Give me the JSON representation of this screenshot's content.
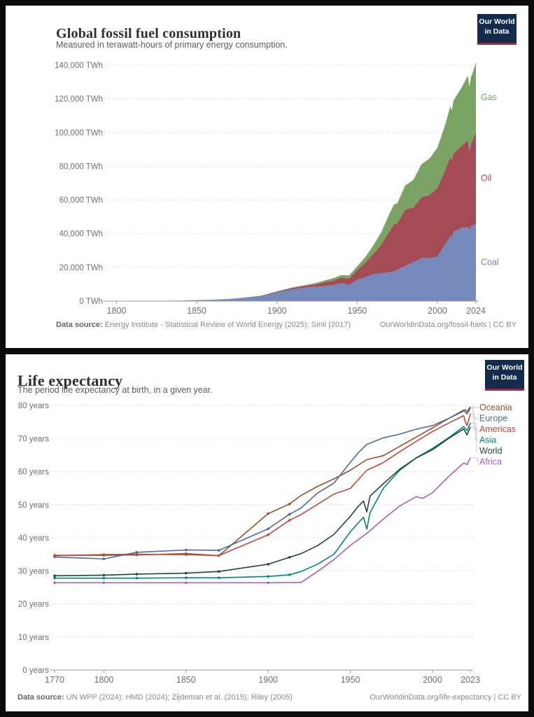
{
  "brand": {
    "logo_line1": "Our World",
    "logo_line2": "in Data",
    "logo_bg": "#132c4d",
    "logo_stripe": "#a52639"
  },
  "charts": [
    {
      "title": "Global fossil fuel consumption",
      "subtitle": "Measured in terawatt-hours of primary energy consumption.",
      "footer": {
        "source_label": "Data source:",
        "source_text": " Energy Institute - Statistical Review of World Energy (2025); Smil (2017)",
        "right_text": "OurWorldinData.org/fossil-fuels | CC BY"
      },
      "chart_data": {
        "type": "area",
        "stacked": true,
        "unit": "TWh",
        "grid": "horizontal-dashed",
        "legend_position": "right-inline",
        "xlim": [
          1795,
          2024
        ],
        "ylim": [
          0,
          140000
        ],
        "xticks": [
          1800,
          1850,
          1900,
          1950,
          2000,
          2024
        ],
        "yticks": [
          0,
          20000,
          40000,
          60000,
          80000,
          100000,
          120000,
          140000
        ],
        "x": [
          1800,
          1810,
          1820,
          1830,
          1840,
          1850,
          1860,
          1870,
          1880,
          1890,
          1900,
          1910,
          1920,
          1925,
          1930,
          1935,
          1940,
          1945,
          1950,
          1955,
          1960,
          1965,
          1970,
          1973,
          1975,
          1980,
          1985,
          1990,
          1995,
          2000,
          2005,
          2008,
          2009,
          2010,
          2015,
          2019,
          2020,
          2021,
          2022,
          2023,
          2024
        ],
        "series": [
          {
            "name": "Coal",
            "color": "#7589ba",
            "values": [
              97,
              120,
              150,
              210,
              300,
              570,
              800,
              1200,
              1900,
              2800,
              5100,
              7000,
              8300,
              8500,
              9000,
              9500,
              10600,
              9500,
              12600,
              14200,
              16000,
              16500,
              17200,
              17700,
              18500,
              20900,
              23000,
              25500,
              25500,
              26500,
              34000,
              38500,
              38000,
              41000,
              43500,
              43800,
              42500,
              44500,
              45000,
              45500,
              46000
            ]
          },
          {
            "name": "Oil",
            "color": "#a34c55",
            "values": [
              0,
              0,
              0,
              0,
              0,
              0,
              10,
              60,
              180,
              300,
              450,
              800,
              1100,
              1600,
              2200,
              2700,
              3300,
              3900,
              5800,
              8500,
              12000,
              17000,
              24000,
              28000,
              27500,
              33500,
              32500,
              36000,
              37500,
              40500,
              44000,
              47000,
              45500,
              46500,
              48500,
              51500,
              46500,
              49000,
              50500,
              52500,
              54000
            ]
          },
          {
            "name": "Gas",
            "color": "#7ba364",
            "values": [
              0,
              0,
              0,
              0,
              0,
              0,
              0,
              0,
              30,
              80,
              250,
              400,
              500,
              800,
              1100,
              1300,
              1500,
              1800,
              2200,
              3300,
              5000,
              7300,
              10400,
              11700,
              12000,
              14300,
              16300,
              19600,
              21500,
              24000,
              27000,
              30000,
              29500,
              31500,
              34500,
              38500,
              38000,
              39800,
              40000,
              40500,
              41800
            ]
          }
        ]
      }
    },
    {
      "title": "Life expectancy",
      "subtitle": "The period life expectancy at birth, in a given year.",
      "footer": {
        "source_label": "Data source:",
        "source_text": " UN WPP (2024); HMD (2024); Zijdeman et al. (2015); Riley (2005)",
        "right_text": "OurWorldinData.org/life-expectancy | CC BY"
      },
      "chart_data": {
        "type": "line",
        "unit": "years",
        "grid": "horizontal-dashed",
        "legend_position": "right",
        "xlim": [
          1770,
          2023
        ],
        "ylim": [
          0,
          80
        ],
        "xticks": [
          1770,
          1800,
          1850,
          1900,
          1950,
          2000,
          2023
        ],
        "yticks": [
          0,
          10,
          20,
          30,
          40,
          50,
          60,
          70,
          80
        ],
        "marker_until_year": 1913,
        "series": [
          {
            "name": "Oceania",
            "color": "#9a5129",
            "points": [
              [
                1770,
                34.7
              ],
              [
                1800,
                34.7
              ],
              [
                1820,
                34.8
              ],
              [
                1850,
                35.2
              ],
              [
                1870,
                34.6
              ],
              [
                1900,
                47.3
              ],
              [
                1913,
                50.2
              ],
              [
                1920,
                52.8
              ],
              [
                1930,
                55.5
              ],
              [
                1940,
                57.8
              ],
              [
                1950,
                60.4
              ],
              [
                1960,
                63.6
              ],
              [
                1970,
                64.8
              ],
              [
                1980,
                67.6
              ],
              [
                1990,
                70.4
              ],
              [
                2000,
                73.2
              ],
              [
                2010,
                76.1
              ],
              [
                2019,
                78.3
              ],
              [
                2020,
                78.7
              ],
              [
                2021,
                78.1
              ],
              [
                2023,
                79.5
              ]
            ]
          },
          {
            "name": "Europe",
            "color": "#4c6a9c",
            "points": [
              [
                1770,
                34.2
              ],
              [
                1800,
                33.6
              ],
              [
                1820,
                35.6
              ],
              [
                1850,
                36.3
              ],
              [
                1870,
                36.2
              ],
              [
                1900,
                42.7
              ],
              [
                1913,
                47.1
              ],
              [
                1920,
                49.0
              ],
              [
                1930,
                53.5
              ],
              [
                1940,
                56.5
              ],
              [
                1950,
                62.8
              ],
              [
                1955,
                65.8
              ],
              [
                1960,
                68.2
              ],
              [
                1970,
                70.2
              ],
              [
                1980,
                71.3
              ],
              [
                1990,
                72.8
              ],
              [
                2000,
                73.9
              ],
              [
                2010,
                76.1
              ],
              [
                2019,
                78.6
              ],
              [
                2020,
                77.9
              ],
              [
                2021,
                77.4
              ],
              [
                2023,
                79.1
              ]
            ]
          },
          {
            "name": "Americas",
            "color": "#c0473c",
            "points": [
              [
                1770,
                34.6
              ],
              [
                1800,
                34.9
              ],
              [
                1820,
                35.0
              ],
              [
                1850,
                34.9
              ],
              [
                1870,
                34.6
              ],
              [
                1900,
                40.9
              ],
              [
                1913,
                45.3
              ],
              [
                1920,
                47.0
              ],
              [
                1930,
                50.1
              ],
              [
                1940,
                53.2
              ],
              [
                1950,
                54.9
              ],
              [
                1960,
                60.4
              ],
              [
                1970,
                62.7
              ],
              [
                1980,
                66.0
              ],
              [
                1990,
                69.1
              ],
              [
                2000,
                72.1
              ],
              [
                2010,
                74.7
              ],
              [
                2019,
                76.9
              ],
              [
                2020,
                75.0
              ],
              [
                2021,
                73.9
              ],
              [
                2023,
                77.4
              ]
            ]
          },
          {
            "name": "Asia",
            "color": "#00847e",
            "points": [
              [
                1770,
                27.8
              ],
              [
                1800,
                27.8
              ],
              [
                1820,
                27.8
              ],
              [
                1850,
                27.9
              ],
              [
                1870,
                27.9
              ],
              [
                1900,
                28.3
              ],
              [
                1913,
                28.8
              ],
              [
                1920,
                29.8
              ],
              [
                1930,
                32.0
              ],
              [
                1940,
                35.0
              ],
              [
                1950,
                41.8
              ],
              [
                1955,
                44.6
              ],
              [
                1958,
                46.2
              ],
              [
                1960,
                42.6
              ],
              [
                1962,
                47.6
              ],
              [
                1970,
                54.9
              ],
              [
                1980,
                60.4
              ],
              [
                1990,
                64.1
              ],
              [
                2000,
                67.0
              ],
              [
                2010,
                70.3
              ],
              [
                2019,
                73.6
              ],
              [
                2021,
                72.4
              ],
              [
                2023,
                74.6
              ]
            ]
          },
          {
            "name": "World",
            "color": "#1d4a32",
            "points": [
              [
                1770,
                28.5
              ],
              [
                1800,
                28.7
              ],
              [
                1820,
                29.0
              ],
              [
                1850,
                29.3
              ],
              [
                1870,
                29.8
              ],
              [
                1900,
                32.0
              ],
              [
                1913,
                34.1
              ],
              [
                1920,
                35.2
              ],
              [
                1930,
                37.6
              ],
              [
                1940,
                41.0
              ],
              [
                1950,
                46.5
              ],
              [
                1955,
                49.6
              ],
              [
                1958,
                51.1
              ],
              [
                1960,
                47.8
              ],
              [
                1962,
                52.6
              ],
              [
                1970,
                56.3
              ],
              [
                1980,
                60.7
              ],
              [
                1990,
                64.1
              ],
              [
                2000,
                66.6
              ],
              [
                2010,
                70.1
              ],
              [
                2019,
                72.9
              ],
              [
                2021,
                71.1
              ],
              [
                2023,
                73.4
              ]
            ]
          },
          {
            "name": "Africa",
            "color": "#a95cbf",
            "points": [
              [
                1770,
                26.4
              ],
              [
                1800,
                26.4
              ],
              [
                1850,
                26.4
              ],
              [
                1900,
                26.4
              ],
              [
                1920,
                26.5
              ],
              [
                1930,
                29.8
              ],
              [
                1940,
                33.4
              ],
              [
                1950,
                37.7
              ],
              [
                1960,
                41.3
              ],
              [
                1970,
                45.6
              ],
              [
                1980,
                49.6
              ],
              [
                1990,
                52.4
              ],
              [
                1994,
                51.9
              ],
              [
                2000,
                53.6
              ],
              [
                2010,
                58.6
              ],
              [
                2019,
                62.6
              ],
              [
                2021,
                62.1
              ],
              [
                2023,
                64.1
              ]
            ]
          }
        ]
      }
    }
  ]
}
